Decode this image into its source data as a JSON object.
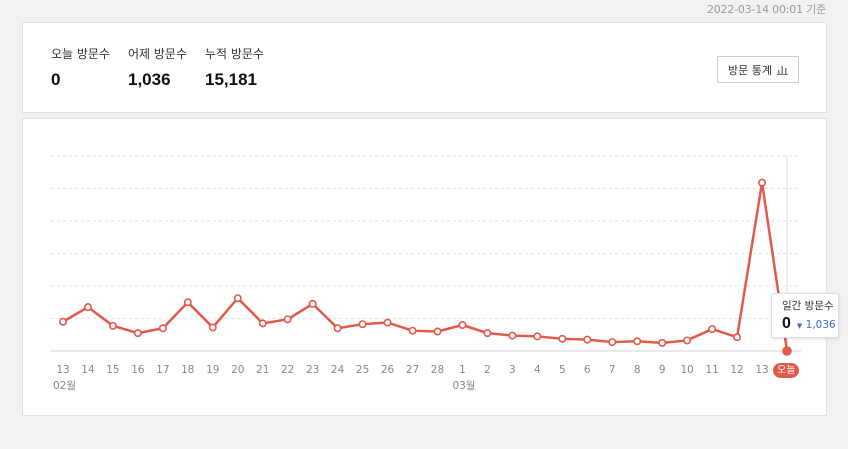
{
  "header": {
    "timestamp": "2022-03-14 00:01 기준"
  },
  "stats": [
    {
      "label": "오늘 방문수",
      "value": "0"
    },
    {
      "label": "어제 방문수",
      "value": "1,036"
    },
    {
      "label": "누적 방문수",
      "value": "15,181"
    }
  ],
  "visit_stats_button": {
    "label": "방문 통계",
    "icon": "bar-chart-icon"
  },
  "tooltip": {
    "label": "일간 방문수",
    "value": "0",
    "diff": "1,036",
    "diff_direction": "down"
  },
  "today_badge": "오늘",
  "colors": {
    "line": "#e25a4a",
    "grid": "#e3e3e3",
    "accent_blue": "#3b6fd4"
  },
  "chart_data": {
    "type": "line",
    "categories": [
      "13",
      "14",
      "15",
      "16",
      "17",
      "18",
      "19",
      "20",
      "21",
      "22",
      "23",
      "24",
      "25",
      "26",
      "27",
      "28",
      "1",
      "2",
      "3",
      "4",
      "5",
      "6",
      "7",
      "8",
      "9",
      "10",
      "11",
      "12",
      "13",
      "오늘"
    ],
    "month_labels": [
      {
        "label": "02월",
        "index": 0
      },
      {
        "label": "03월",
        "index": 16
      }
    ],
    "values": [
      180,
      270,
      155,
      110,
      140,
      300,
      145,
      325,
      170,
      195,
      290,
      140,
      165,
      175,
      125,
      120,
      160,
      110,
      95,
      90,
      75,
      70,
      55,
      60,
      50,
      65,
      135,
      85,
      1036,
      0
    ],
    "ylim": [
      0,
      1200
    ],
    "gridlines": 6,
    "grid": true
  }
}
